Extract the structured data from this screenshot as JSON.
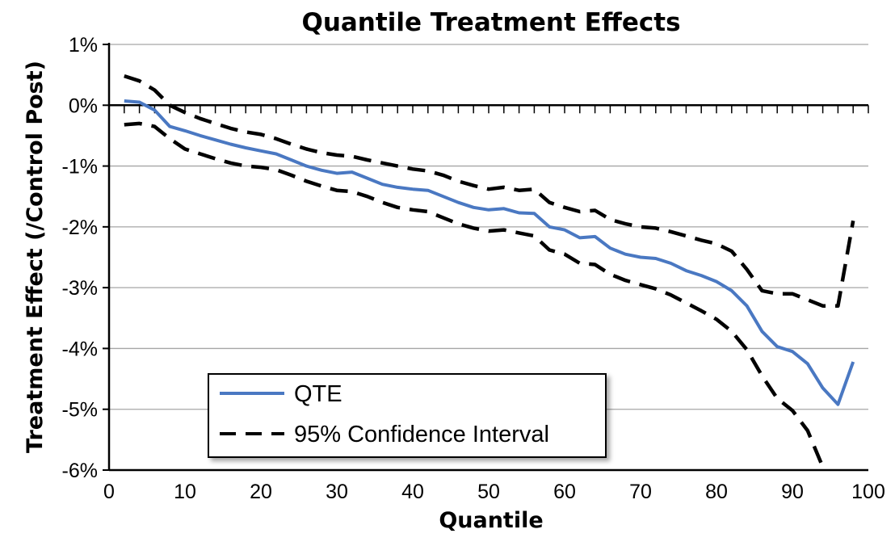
{
  "chart_data": {
    "type": "line",
    "title": "Quantile Treatment Effects",
    "xlabel": "Quantile",
    "ylabel": "Treatment Effect (/Control Post)",
    "xlim": [
      0,
      100
    ],
    "ylim": [
      -6,
      1
    ],
    "x_ticks": [
      0,
      10,
      20,
      30,
      40,
      50,
      60,
      70,
      80,
      90,
      100
    ],
    "x_tick_labels": [
      "0",
      "10",
      "20",
      "30",
      "40",
      "50",
      "60",
      "70",
      "80",
      "90",
      "100"
    ],
    "y_ticks": [
      1,
      0,
      -1,
      -2,
      -3,
      -4,
      -5,
      -6
    ],
    "y_tick_labels": [
      "1%",
      "0%",
      "-1%",
      "-2%",
      "-3%",
      "-4%",
      "-5%",
      "-6%"
    ],
    "grid": "horizontal",
    "legend_position": "bottom-left",
    "series": [
      {
        "name": "QTE",
        "color": "#4a78c2",
        "style": "solid",
        "x": [
          2,
          4,
          6,
          8,
          10,
          12,
          14,
          16,
          18,
          20,
          22,
          24,
          26,
          28,
          30,
          32,
          34,
          36,
          38,
          40,
          42,
          44,
          46,
          48,
          50,
          52,
          54,
          56,
          58,
          60,
          62,
          64,
          66,
          68,
          70,
          72,
          74,
          76,
          78,
          80,
          82,
          84,
          86,
          88,
          90,
          92,
          94,
          96,
          98
        ],
        "y": [
          0.07,
          0.05,
          -0.08,
          -0.35,
          -0.42,
          -0.5,
          -0.57,
          -0.64,
          -0.7,
          -0.75,
          -0.8,
          -0.9,
          -1.0,
          -1.07,
          -1.12,
          -1.1,
          -1.2,
          -1.3,
          -1.35,
          -1.38,
          -1.4,
          -1.5,
          -1.6,
          -1.68,
          -1.72,
          -1.7,
          -1.77,
          -1.78,
          -2.0,
          -2.05,
          -2.18,
          -2.16,
          -2.35,
          -2.45,
          -2.5,
          -2.52,
          -2.6,
          -2.72,
          -2.8,
          -2.9,
          -3.05,
          -3.3,
          -3.72,
          -3.97,
          -4.05,
          -4.25,
          -4.65,
          -4.92,
          -4.22
        ]
      },
      {
        "name": "95% Confidence Interval",
        "color": "#000000",
        "style": "dashed",
        "x": [
          2,
          4,
          6,
          8,
          10,
          12,
          14,
          16,
          18,
          20,
          22,
          24,
          26,
          28,
          30,
          32,
          34,
          36,
          38,
          40,
          42,
          44,
          46,
          48,
          50,
          52,
          54,
          56,
          58,
          60,
          62,
          64,
          66,
          68,
          70,
          72,
          74,
          76,
          78,
          80,
          82,
          84,
          86,
          88,
          90,
          92,
          94,
          96,
          98
        ],
        "y": [
          0.48,
          0.4,
          0.25,
          0.0,
          -0.12,
          -0.22,
          -0.3,
          -0.38,
          -0.44,
          -0.48,
          -0.55,
          -0.64,
          -0.72,
          -0.78,
          -0.82,
          -0.84,
          -0.9,
          -0.95,
          -1.0,
          -1.05,
          -1.08,
          -1.15,
          -1.25,
          -1.32,
          -1.38,
          -1.35,
          -1.4,
          -1.38,
          -1.6,
          -1.68,
          -1.75,
          -1.73,
          -1.88,
          -1.95,
          -2.0,
          -2.02,
          -2.08,
          -2.15,
          -2.22,
          -2.28,
          -2.4,
          -2.7,
          -3.05,
          -3.1,
          -3.1,
          -3.2,
          -3.3,
          -3.3,
          -1.9
        ]
      },
      {
        "name": "",
        "color": "#000000",
        "style": "dashed",
        "x": [
          2,
          4,
          6,
          8,
          10,
          12,
          14,
          16,
          18,
          20,
          22,
          24,
          26,
          28,
          30,
          32,
          34,
          36,
          38,
          40,
          42,
          44,
          46,
          48,
          50,
          52,
          54,
          56,
          58,
          60,
          62,
          64,
          66,
          68,
          70,
          72,
          74,
          76,
          78,
          80,
          82,
          84,
          86,
          88,
          90,
          92,
          94
        ],
        "y": [
          -0.32,
          -0.3,
          -0.35,
          -0.55,
          -0.72,
          -0.8,
          -0.88,
          -0.95,
          -1.0,
          -1.02,
          -1.06,
          -1.15,
          -1.25,
          -1.33,
          -1.4,
          -1.42,
          -1.5,
          -1.6,
          -1.68,
          -1.72,
          -1.75,
          -1.85,
          -1.95,
          -2.02,
          -2.07,
          -2.05,
          -2.1,
          -2.15,
          -2.38,
          -2.45,
          -2.6,
          -2.62,
          -2.78,
          -2.88,
          -2.95,
          -3.02,
          -3.12,
          -3.25,
          -3.38,
          -3.52,
          -3.72,
          -4.02,
          -4.45,
          -4.82,
          -5.02,
          -5.35,
          -5.95
        ]
      }
    ],
    "legend": [
      {
        "label": "QTE",
        "color": "#4a78c2",
        "style": "solid"
      },
      {
        "label": "95% Confidence Interval",
        "color": "#000000",
        "style": "dashed"
      }
    ]
  }
}
